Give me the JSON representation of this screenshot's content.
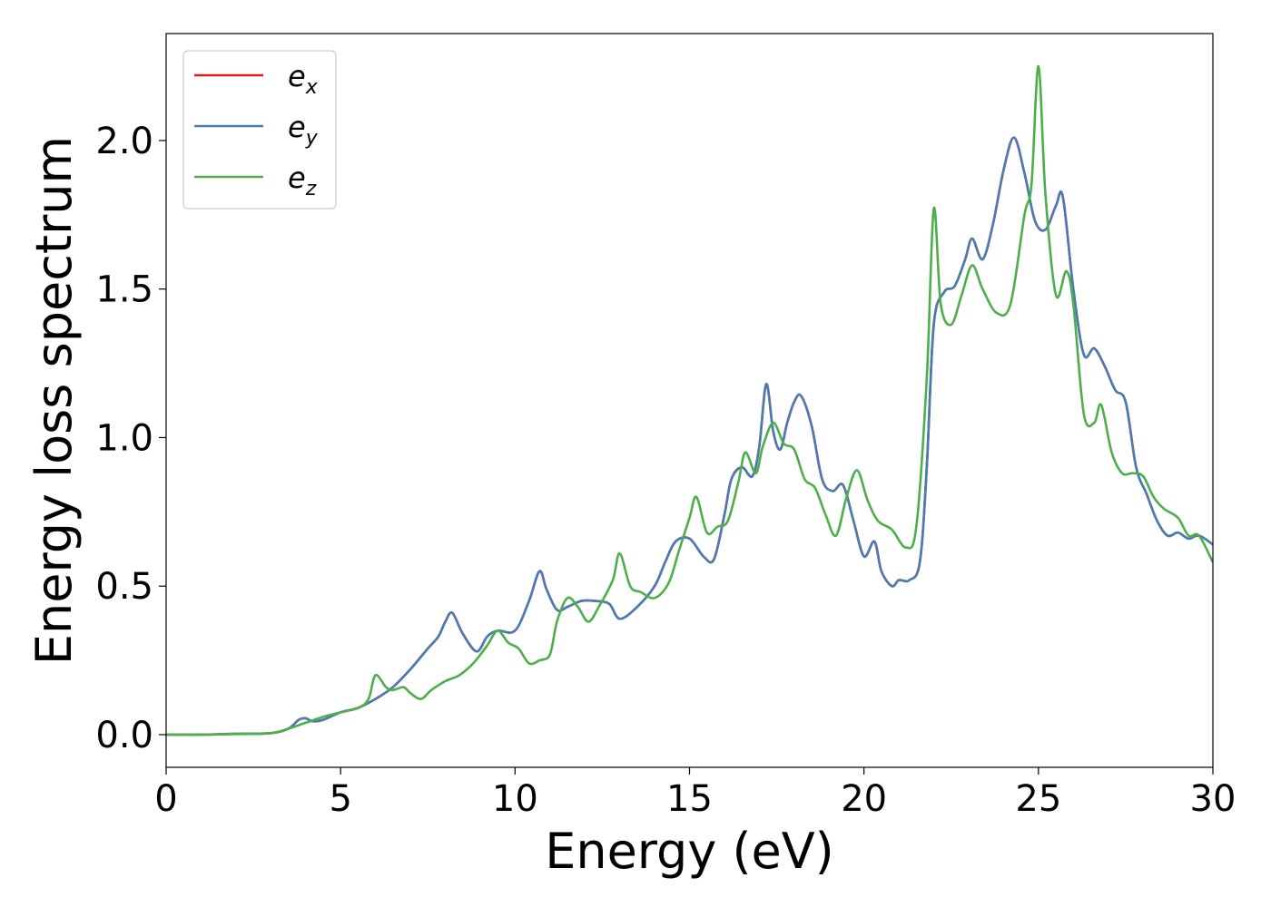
{
  "chart_data": {
    "type": "line",
    "xlabel": "Energy (eV)",
    "ylabel": "Energy loss spectrum",
    "xlim": [
      0,
      30
    ],
    "ylim": [
      -0.11,
      2.36
    ],
    "xticks": [
      0,
      5,
      10,
      15,
      20,
      25,
      30
    ],
    "xtick_labels": [
      "0",
      "5",
      "10",
      "15",
      "20",
      "25",
      "30"
    ],
    "yticks": [
      0.0,
      0.5,
      1.0,
      1.5,
      2.0
    ],
    "ytick_labels": [
      "0.0",
      "0.5",
      "1.0",
      "1.5",
      "2.0"
    ],
    "grid": false,
    "legend_position": "top-left",
    "series": [
      {
        "name": "e_x",
        "legend_base": "e",
        "legend_sub": "x",
        "color": "#e41a1c",
        "x": [
          0,
          1,
          2,
          3,
          3.5,
          3.8,
          4.0,
          4.2,
          4.5,
          5.0,
          5.5,
          6.0,
          6.5,
          7.0,
          7.5,
          7.8,
          8.0,
          8.2,
          8.5,
          8.9,
          9.2,
          9.5,
          10.0,
          10.4,
          10.7,
          10.9,
          11.2,
          11.5,
          11.9,
          12.3,
          12.7,
          13.0,
          13.5,
          14.0,
          14.3,
          14.6,
          15.0,
          15.4,
          15.7,
          16.0,
          16.2,
          16.5,
          16.8,
          17.0,
          17.2,
          17.4,
          17.6,
          17.8,
          18.0,
          18.2,
          18.5,
          18.8,
          19.1,
          19.4,
          19.7,
          20.0,
          20.3,
          20.5,
          20.8,
          21.0,
          21.3,
          21.6,
          21.8,
          22.0,
          22.3,
          22.6,
          22.9,
          23.1,
          23.4,
          23.7,
          24.0,
          24.3,
          24.6,
          24.9,
          25.2,
          25.5,
          25.7,
          26.0,
          26.3,
          26.6,
          26.9,
          27.2,
          27.5,
          27.8,
          28.1,
          28.4,
          28.7,
          29.0,
          29.3,
          29.6,
          30.0
        ],
        "y": [
          0.0,
          0.0,
          0.003,
          0.005,
          0.02,
          0.05,
          0.055,
          0.045,
          0.05,
          0.075,
          0.09,
          0.12,
          0.16,
          0.22,
          0.29,
          0.33,
          0.38,
          0.41,
          0.34,
          0.28,
          0.33,
          0.35,
          0.35,
          0.45,
          0.55,
          0.49,
          0.42,
          0.43,
          0.45,
          0.45,
          0.44,
          0.39,
          0.43,
          0.5,
          0.58,
          0.65,
          0.66,
          0.6,
          0.59,
          0.74,
          0.86,
          0.9,
          0.87,
          0.97,
          1.18,
          1.02,
          0.96,
          1.05,
          1.12,
          1.14,
          1.04,
          0.86,
          0.82,
          0.84,
          0.72,
          0.6,
          0.65,
          0.55,
          0.5,
          0.52,
          0.52,
          0.58,
          0.9,
          1.38,
          1.49,
          1.51,
          1.6,
          1.67,
          1.6,
          1.72,
          1.9,
          2.01,
          1.89,
          1.73,
          1.7,
          1.78,
          1.81,
          1.5,
          1.28,
          1.3,
          1.24,
          1.16,
          1.12,
          0.9,
          0.81,
          0.72,
          0.67,
          0.68,
          0.66,
          0.67,
          0.64
        ]
      },
      {
        "name": "e_y",
        "legend_base": "e",
        "legend_sub": "y",
        "color": "#4a7cb4",
        "x": [
          0,
          1,
          2,
          3,
          3.5,
          3.8,
          4.0,
          4.2,
          4.5,
          5.0,
          5.5,
          6.0,
          6.5,
          7.0,
          7.5,
          7.8,
          8.0,
          8.2,
          8.5,
          8.9,
          9.2,
          9.5,
          10.0,
          10.4,
          10.7,
          10.9,
          11.2,
          11.5,
          11.9,
          12.3,
          12.7,
          13.0,
          13.5,
          14.0,
          14.3,
          14.6,
          15.0,
          15.4,
          15.7,
          16.0,
          16.2,
          16.5,
          16.8,
          17.0,
          17.2,
          17.4,
          17.6,
          17.8,
          18.0,
          18.2,
          18.5,
          18.8,
          19.1,
          19.4,
          19.7,
          20.0,
          20.3,
          20.5,
          20.8,
          21.0,
          21.3,
          21.6,
          21.8,
          22.0,
          22.3,
          22.6,
          22.9,
          23.1,
          23.4,
          23.7,
          24.0,
          24.3,
          24.6,
          24.9,
          25.2,
          25.5,
          25.7,
          26.0,
          26.3,
          26.6,
          26.9,
          27.2,
          27.5,
          27.8,
          28.1,
          28.4,
          28.7,
          29.0,
          29.3,
          29.6,
          30.0
        ],
        "y": [
          0.0,
          0.0,
          0.003,
          0.005,
          0.02,
          0.05,
          0.055,
          0.045,
          0.05,
          0.075,
          0.09,
          0.12,
          0.16,
          0.22,
          0.29,
          0.33,
          0.38,
          0.41,
          0.34,
          0.28,
          0.33,
          0.35,
          0.35,
          0.45,
          0.55,
          0.49,
          0.42,
          0.43,
          0.45,
          0.45,
          0.44,
          0.39,
          0.43,
          0.5,
          0.58,
          0.65,
          0.66,
          0.6,
          0.59,
          0.74,
          0.86,
          0.9,
          0.87,
          0.97,
          1.18,
          1.02,
          0.96,
          1.05,
          1.12,
          1.14,
          1.04,
          0.86,
          0.82,
          0.84,
          0.72,
          0.6,
          0.65,
          0.55,
          0.5,
          0.52,
          0.52,
          0.58,
          0.9,
          1.38,
          1.49,
          1.51,
          1.6,
          1.67,
          1.6,
          1.72,
          1.9,
          2.01,
          1.89,
          1.73,
          1.7,
          1.78,
          1.81,
          1.5,
          1.28,
          1.3,
          1.24,
          1.16,
          1.12,
          0.9,
          0.81,
          0.72,
          0.67,
          0.68,
          0.66,
          0.67,
          0.64
        ]
      },
      {
        "name": "e_z",
        "legend_base": "e",
        "legend_sub": "z",
        "color": "#4daf4a",
        "x": [
          0,
          1,
          2,
          3,
          3.5,
          4.0,
          4.5,
          5.0,
          5.5,
          5.8,
          6.0,
          6.3,
          6.5,
          6.8,
          7.0,
          7.3,
          7.6,
          8.0,
          8.4,
          8.8,
          9.2,
          9.5,
          9.8,
          10.1,
          10.4,
          10.7,
          11.0,
          11.2,
          11.5,
          11.8,
          12.1,
          12.4,
          12.8,
          13.0,
          13.3,
          13.6,
          14.0,
          14.4,
          14.7,
          15.0,
          15.2,
          15.5,
          15.8,
          16.1,
          16.4,
          16.6,
          16.9,
          17.1,
          17.4,
          17.7,
          18.0,
          18.3,
          18.6,
          18.9,
          19.2,
          19.5,
          19.8,
          20.1,
          20.4,
          20.8,
          21.2,
          21.5,
          21.8,
          22.0,
          22.2,
          22.5,
          22.8,
          23.1,
          23.4,
          23.8,
          24.2,
          24.6,
          24.8,
          25.0,
          25.2,
          25.5,
          25.8,
          26.0,
          26.3,
          26.6,
          26.8,
          27.1,
          27.4,
          27.7,
          28.0,
          28.3,
          28.6,
          29.0,
          29.3,
          29.6,
          30.0
        ],
        "y": [
          0.0,
          0.0,
          0.002,
          0.005,
          0.02,
          0.04,
          0.06,
          0.075,
          0.09,
          0.12,
          0.2,
          0.16,
          0.15,
          0.16,
          0.14,
          0.12,
          0.15,
          0.18,
          0.2,
          0.24,
          0.3,
          0.35,
          0.31,
          0.29,
          0.24,
          0.25,
          0.27,
          0.38,
          0.46,
          0.43,
          0.38,
          0.43,
          0.52,
          0.61,
          0.5,
          0.48,
          0.46,
          0.51,
          0.62,
          0.73,
          0.8,
          0.68,
          0.7,
          0.72,
          0.85,
          0.95,
          0.88,
          0.97,
          1.05,
          0.98,
          0.96,
          0.86,
          0.83,
          0.74,
          0.67,
          0.8,
          0.89,
          0.79,
          0.72,
          0.69,
          0.63,
          0.7,
          1.2,
          1.77,
          1.45,
          1.38,
          1.48,
          1.58,
          1.5,
          1.42,
          1.45,
          1.75,
          1.85,
          2.25,
          1.82,
          1.48,
          1.56,
          1.45,
          1.08,
          1.05,
          1.11,
          0.95,
          0.88,
          0.88,
          0.87,
          0.8,
          0.76,
          0.73,
          0.67,
          0.67,
          0.58
        ]
      }
    ]
  }
}
